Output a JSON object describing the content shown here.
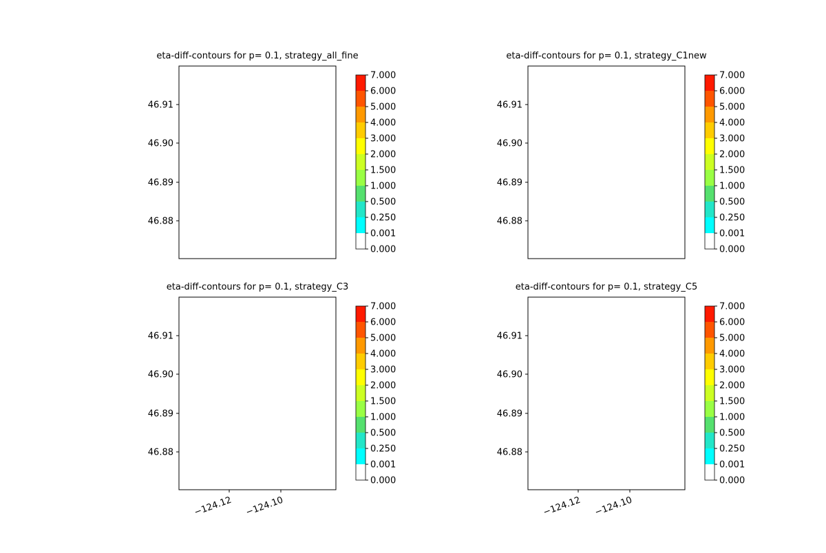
{
  "figure": {
    "background": "#ffffff",
    "coastline_color": "#000000"
  },
  "shared": {
    "ytick_labels": [
      "46.91",
      "46.90",
      "46.89",
      "46.88"
    ],
    "xtick_labels": [
      "−124.12",
      "−124.10"
    ],
    "colorbar_labels": [
      "0.000",
      "0.001",
      "0.250",
      "0.500",
      "1.000",
      "1.500",
      "2.000",
      "3.000",
      "4.000",
      "5.000",
      "6.000",
      "7.000"
    ],
    "colorbar_colors": [
      "#ffffff",
      "#00ffff",
      "#22e6c8",
      "#55e06e",
      "#99ff44",
      "#ccff22",
      "#ffff00",
      "#ffcc00",
      "#ff9900",
      "#ff5500",
      "#ff1a00"
    ]
  },
  "panels": [
    {
      "title": "eta-diff-contours for p= 0.1, strategy_all_fine",
      "show_xticks": false
    },
    {
      "title": "eta-diff-contours for p= 0.1, strategy_C1new",
      "show_xticks": false
    },
    {
      "title": "eta-diff-contours for p= 0.1, strategy_C3",
      "show_xticks": true
    },
    {
      "title": "eta-diff-contours for p= 0.1, strategy_C5",
      "show_xticks": true
    }
  ],
  "chart_data": [
    {
      "type": "contour",
      "title": "eta-diff-contours for p= 0.1, strategy_all_fine",
      "xlabel": "",
      "ylabel": "",
      "yticks": [
        46.91,
        46.9,
        46.89,
        46.88
      ],
      "xticks": [],
      "colorbar_levels": [
        0.0,
        0.001,
        0.25,
        0.5,
        1.0,
        1.5,
        2.0,
        3.0,
        4.0,
        5.0,
        6.0,
        7.0
      ],
      "colormap": "jet",
      "filled_regions": "none visible (all white)"
    },
    {
      "type": "contour",
      "title": "eta-diff-contours for p= 0.1, strategy_C1new",
      "xlabel": "",
      "ylabel": "",
      "yticks": [
        46.91,
        46.9,
        46.89,
        46.88
      ],
      "xticks": [],
      "colorbar_levels": [
        0.0,
        0.001,
        0.25,
        0.5,
        1.0,
        1.5,
        2.0,
        3.0,
        4.0,
        5.0,
        6.0,
        7.0
      ],
      "colormap": "jet",
      "filled_regions": "none visible (all white)"
    },
    {
      "type": "contour",
      "title": "eta-diff-contours for p= 0.1, strategy_C3",
      "xlabel": "",
      "ylabel": "",
      "yticks": [
        46.91,
        46.9,
        46.89,
        46.88
      ],
      "xticks": [
        -124.12,
        -124.1
      ],
      "colorbar_levels": [
        0.0,
        0.001,
        0.25,
        0.5,
        1.0,
        1.5,
        2.0,
        3.0,
        4.0,
        5.0,
        6.0,
        7.0
      ],
      "colormap": "jet",
      "filled_regions": "none visible (all white)"
    },
    {
      "type": "contour",
      "title": "eta-diff-contours for p= 0.1, strategy_C5",
      "xlabel": "",
      "ylabel": "",
      "yticks": [
        46.91,
        46.9,
        46.89,
        46.88
      ],
      "xticks": [
        -124.12,
        -124.1
      ],
      "colorbar_levels": [
        0.0,
        0.001,
        0.25,
        0.5,
        1.0,
        1.5,
        2.0,
        3.0,
        4.0,
        5.0,
        6.0,
        7.0
      ],
      "colormap": "jet",
      "filled_regions": "none visible (all white)"
    }
  ]
}
